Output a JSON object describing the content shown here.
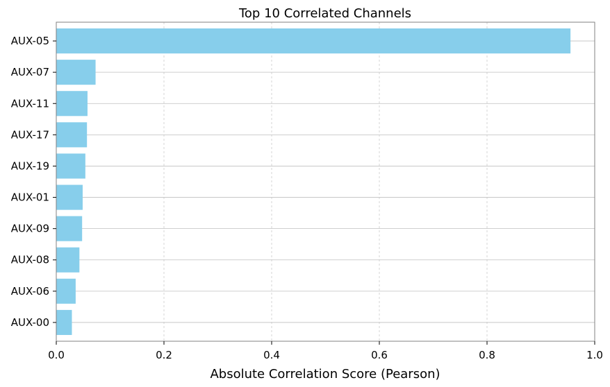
{
  "chart_data": {
    "type": "bar",
    "orientation": "horizontal",
    "title": "Top 10 Correlated Channels",
    "xlabel": "Absolute Correlation Score (Pearson)",
    "ylabel": "",
    "xlim": [
      0,
      1.0
    ],
    "x_ticks": [
      "0.0",
      "0.2",
      "0.4",
      "0.6",
      "0.8",
      "1.0"
    ],
    "x_tick_values": [
      0,
      0.2,
      0.4,
      0.6,
      0.8,
      1.0
    ],
    "categories": [
      "AUX-05",
      "AUX-07",
      "AUX-11",
      "AUX-17",
      "AUX-19",
      "AUX-01",
      "AUX-09",
      "AUX-08",
      "AUX-06",
      "AUX-00"
    ],
    "values": [
      0.955,
      0.073,
      0.058,
      0.057,
      0.054,
      0.049,
      0.048,
      0.043,
      0.036,
      0.029
    ],
    "bar_color": "#87ceeb",
    "grid": true,
    "legend": "none"
  }
}
